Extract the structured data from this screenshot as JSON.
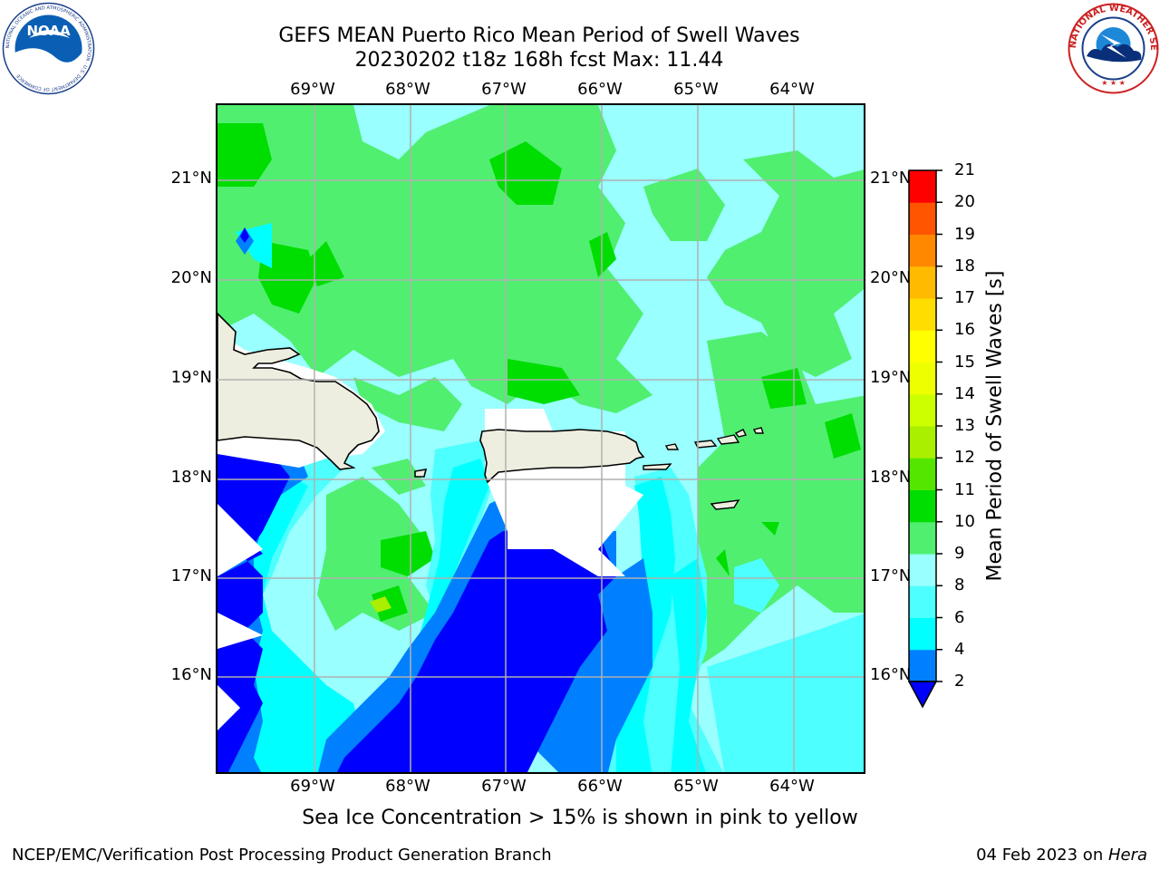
{
  "header": {
    "title_line1": "GEFS MEAN Puerto Rico Mean Period of Swell Waves",
    "title_line2": "20230202 t18z 168h fcst   Max: 11.44"
  },
  "logos": {
    "left": {
      "name": "NOAA logo",
      "text": "NOAA",
      "ring_text": "NATIONAL OCEANIC AND ATMOSPHERIC ADMINISTRATION · U.S. DEPARTMENT OF COMMERCE"
    },
    "right": {
      "name": "National Weather Service logo",
      "ring_text": "NATIONAL WEATHER SERVICE"
    }
  },
  "map": {
    "lon_labels": [
      "69°W",
      "68°W",
      "67°W",
      "66°W",
      "65°W",
      "64°W"
    ],
    "lat_labels": [
      "21°N",
      "20°N",
      "19°N",
      "18°N",
      "17°N",
      "16°N"
    ],
    "land_color": "#eeeee0",
    "grid_color": "#b0b0b0",
    "regions": [
      "Hispaniola",
      "Puerto Rico",
      "Virgin Islands"
    ]
  },
  "colorbar": {
    "label": "Mean Period of Swell Waves [s]",
    "ticks": [
      "2",
      "4",
      "6",
      "8",
      "9",
      "10",
      "11",
      "12",
      "13",
      "14",
      "15",
      "16",
      "17",
      "18",
      "19",
      "20",
      "21"
    ],
    "colors": [
      "#0000ff",
      "#0080ff",
      "#00ffff",
      "#4dffff",
      "#99ffff",
      "#50ef70",
      "#00dd00",
      "#55e600",
      "#aaee00",
      "#ccff00",
      "#eeff00",
      "#ffff00",
      "#ffdd00",
      "#ffbb00",
      "#ff8800",
      "#ff5500",
      "#ff0000"
    ]
  },
  "note": "Sea Ice Concentration > 15% is shown in pink to yellow",
  "footer": {
    "left": "NCEP/EMC/Verification Post Processing Product Generation Branch",
    "right_date": "04 Feb 2023 on ",
    "right_host": "Hera"
  }
}
